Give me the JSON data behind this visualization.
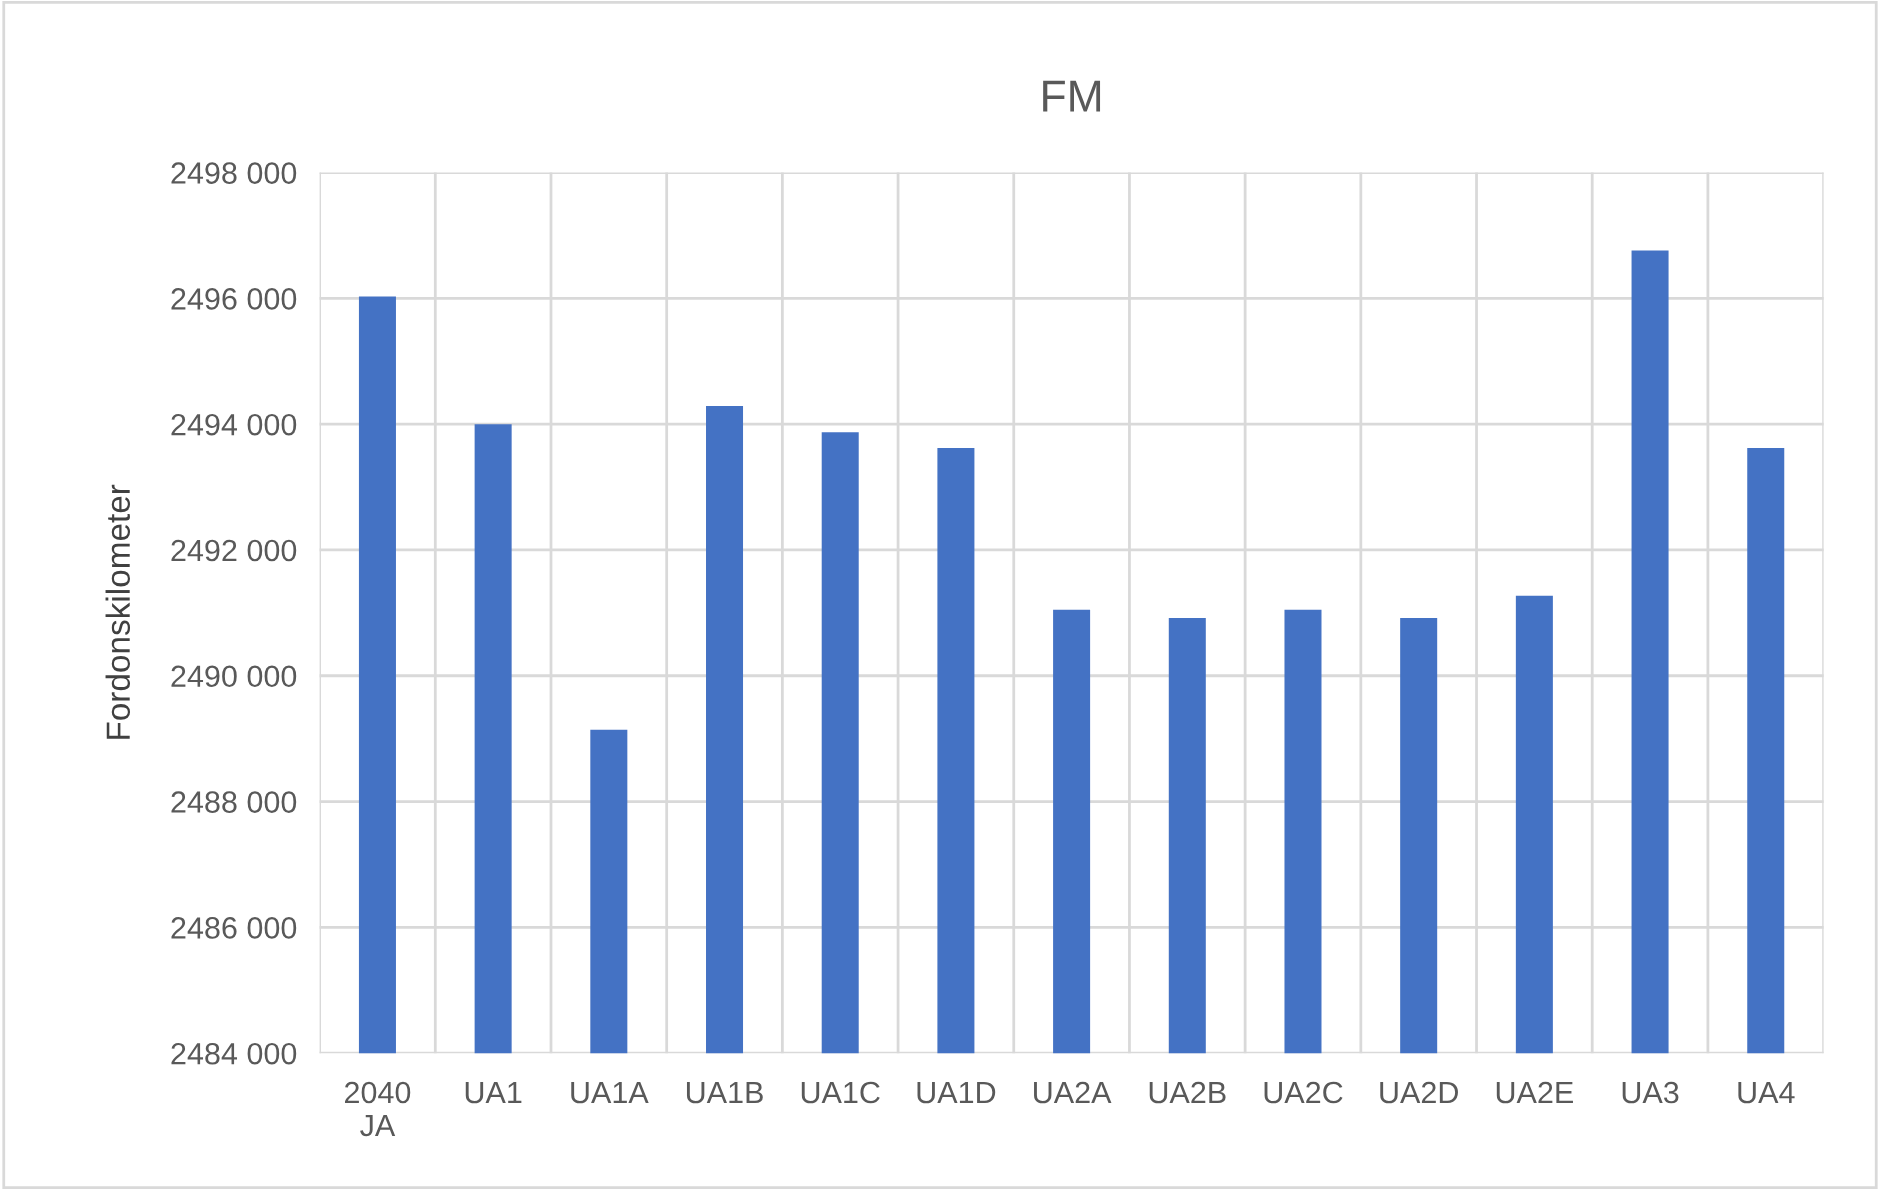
{
  "chart_data": {
    "type": "bar",
    "title": "FM",
    "ylabel": "Fordonskilometer",
    "categories": [
      "2040\nJA",
      "UA1",
      "UA1A",
      "UA1B",
      "UA1C",
      "UA1D",
      "UA2A",
      "UA2B",
      "UA2C",
      "UA2D",
      "UA2E",
      "UA3",
      "UA4"
    ],
    "values": [
      2496030,
      2494000,
      2489140,
      2494290,
      2493870,
      2493620,
      2491050,
      2490920,
      2491050,
      2490920,
      2491270,
      2496760,
      2493620
    ],
    "color": "#4472c4",
    "ylim": [
      2484000,
      2498000
    ],
    "yticks": [
      {
        "value": 2484000,
        "label": "2484 000"
      },
      {
        "value": 2486000,
        "label": "2486 000"
      },
      {
        "value": 2488000,
        "label": "2488 000"
      },
      {
        "value": 2490000,
        "label": "2490 000"
      },
      {
        "value": 2492000,
        "label": "2492 000"
      },
      {
        "value": 2494000,
        "label": "2494 000"
      },
      {
        "value": 2496000,
        "label": "2496 000"
      },
      {
        "value": 2498000,
        "label": "2498 000"
      }
    ],
    "grid": true
  }
}
